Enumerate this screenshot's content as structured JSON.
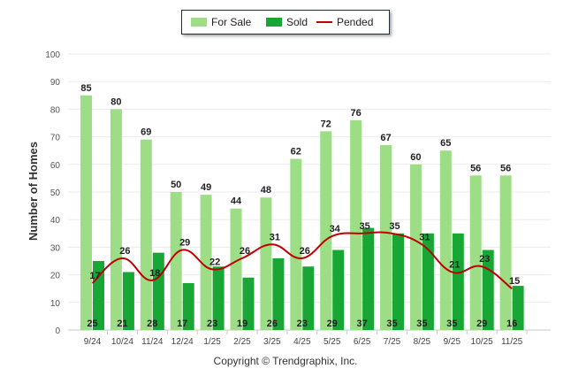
{
  "chart_data": {
    "type": "bar",
    "ylabel": "Number of Homes",
    "ylim": [
      0,
      100
    ],
    "yticks": [
      0,
      10,
      20,
      30,
      40,
      50,
      60,
      70,
      80,
      90,
      100
    ],
    "categories": [
      "9/24",
      "10/24",
      "11/24",
      "12/24",
      "1/25",
      "2/25",
      "3/25",
      "4/25",
      "5/25",
      "6/25",
      "7/25",
      "8/25",
      "9/25",
      "10/25",
      "11/25"
    ],
    "series": [
      {
        "name": "For Sale",
        "kind": "bar",
        "color": "#9ddd86",
        "values": [
          85,
          80,
          69,
          50,
          49,
          44,
          48,
          62,
          72,
          76,
          67,
          60,
          65,
          56,
          56
        ]
      },
      {
        "name": "Sold",
        "kind": "bar",
        "color": "#18a635",
        "values": [
          25,
          21,
          28,
          17,
          23,
          19,
          26,
          23,
          29,
          37,
          35,
          35,
          35,
          29,
          16
        ]
      },
      {
        "name": "Pended",
        "kind": "line",
        "color": "#c00000",
        "values": [
          17,
          26,
          18,
          29,
          22,
          26,
          31,
          26,
          34,
          35,
          35,
          31,
          21,
          23,
          15
        ]
      }
    ],
    "legend_position": "top-center",
    "grid": true
  },
  "footer": {
    "copyright": "Copyright © Trendgraphix, Inc."
  }
}
